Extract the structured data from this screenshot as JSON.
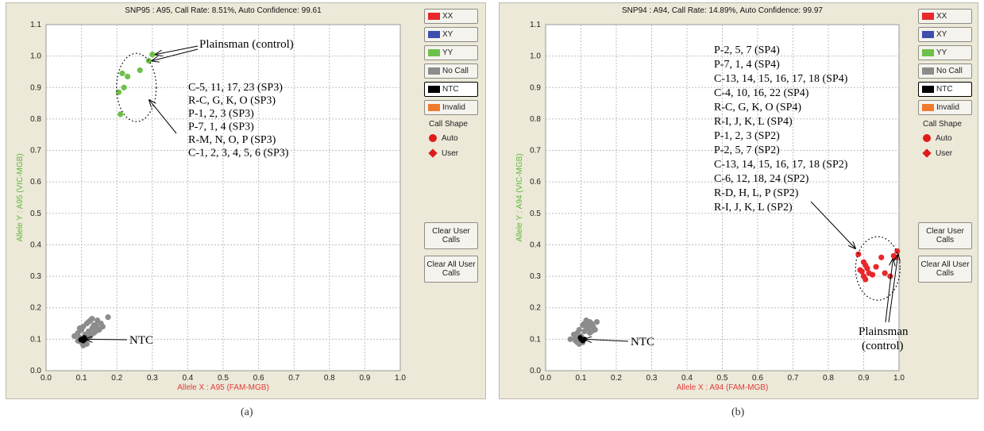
{
  "legend": {
    "items": [
      {
        "label": "XX",
        "color": "#e8282b"
      },
      {
        "label": "XY",
        "color": "#3c4fae"
      },
      {
        "label": "YY",
        "color": "#6dc14a"
      },
      {
        "label": "No Call",
        "color": "#8c8c8c"
      },
      {
        "label": "NTC",
        "color": "#000000"
      },
      {
        "label": "Invalid",
        "color": "#f07b2e"
      }
    ],
    "call_shape_label": "Call Shape",
    "auto_label": "Auto",
    "user_label": "User"
  },
  "buttons": {
    "clear_user": "Clear User Calls",
    "clear_all": "Clear All User Calls"
  },
  "chart_data": [
    {
      "type": "scatter",
      "caption": "(a)",
      "title": "SNP95 : A95, Call Rate: 8.51%, Auto Confidence: 99.61",
      "xlabel": "Allele X : A95 (FAM-MGB)",
      "ylabel": "Allele Y : A95 (VIC-MGB)",
      "xlim": [
        0,
        1.0
      ],
      "ylim": [
        0,
        1.1
      ],
      "ticks_x": [
        "0.0",
        "0.1",
        "0.2",
        "0.3",
        "0.4",
        "0.5",
        "0.6",
        "0.7",
        "0.8",
        "0.9",
        "1.0"
      ],
      "ticks_y": [
        "0.0",
        "0.1",
        "0.2",
        "0.3",
        "0.4",
        "0.5",
        "0.6",
        "0.7",
        "0.8",
        "0.9",
        "1.0",
        "1.1"
      ],
      "grid": true,
      "series": [
        {
          "call": "YY",
          "color": "#6dc14a",
          "points": [
            [
              0.3,
              1.005
            ],
            [
              0.29,
              0.985
            ],
            [
              0.265,
              0.955
            ],
            [
              0.23,
              0.935
            ],
            [
              0.215,
              0.945
            ],
            [
              0.22,
              0.9
            ],
            [
              0.205,
              0.885
            ],
            [
              0.21,
              0.815
            ]
          ]
        },
        {
          "call": "No Call",
          "color": "#8c8c8c",
          "points": [
            [
              0.08,
              0.11
            ],
            [
              0.09,
              0.12
            ],
            [
              0.095,
              0.105
            ],
            [
              0.1,
              0.13
            ],
            [
              0.105,
              0.14
            ],
            [
              0.11,
              0.115
            ],
            [
              0.115,
              0.15
            ],
            [
              0.12,
              0.125
            ],
            [
              0.125,
              0.16
            ],
            [
              0.13,
              0.135
            ],
            [
              0.135,
              0.12
            ],
            [
              0.14,
              0.145
            ],
            [
              0.145,
              0.16
            ],
            [
              0.15,
              0.13
            ],
            [
              0.155,
              0.15
            ],
            [
              0.1,
              0.09
            ],
            [
              0.11,
              0.1
            ],
            [
              0.12,
              0.155
            ],
            [
              0.13,
              0.165
            ],
            [
              0.14,
              0.125
            ],
            [
              0.16,
              0.14
            ],
            [
              0.175,
              0.17
            ],
            [
              0.095,
              0.135
            ],
            [
              0.105,
              0.08
            ],
            [
              0.115,
              0.085
            ],
            [
              0.12,
              0.105
            ],
            [
              0.135,
              0.145
            ],
            [
              0.125,
              0.11
            ],
            [
              0.09,
              0.095
            ],
            [
              0.145,
              0.135
            ]
          ]
        },
        {
          "call": "NTC",
          "color": "#000000",
          "points": [
            [
              0.1,
              0.1
            ],
            [
              0.105,
              0.095
            ],
            [
              0.11,
              0.1
            ],
            [
              0.108,
              0.105
            ],
            [
              0.098,
              0.098
            ]
          ]
        }
      ],
      "annotations": {
        "control": "Plainsman (control)",
        "ntc": "NTC",
        "lines": [
          "C-5, 11, 17, 23 (SP3)",
          "R-C, G, K, O (SP3)",
          "P-1, 2, 3 (SP3)",
          "P-7, 1, 4 (SP3)",
          "R-M, N, O, P (SP3)",
          "C-1, 2, 3, 4, 5, 6 (SP3)"
        ]
      }
    },
    {
      "type": "scatter",
      "caption": "(b)",
      "title": "SNP94 : A94, Call Rate: 14.89%, Auto Confidence: 99.97",
      "xlabel": "Allele X : A94 (FAM-MGB)",
      "ylabel": "Allele Y : A94 (VIC-MGB)",
      "xlim": [
        0,
        1.0
      ],
      "ylim": [
        0,
        1.1
      ],
      "ticks_x": [
        "0.0",
        "0.1",
        "0.2",
        "0.3",
        "0.4",
        "0.5",
        "0.6",
        "0.7",
        "0.8",
        "0.9",
        "1.0"
      ],
      "ticks_y": [
        "0.0",
        "0.1",
        "0.2",
        "0.3",
        "0.4",
        "0.5",
        "0.6",
        "0.7",
        "0.8",
        "0.9",
        "1.0",
        "1.1"
      ],
      "grid": true,
      "series": [
        {
          "call": "XX",
          "color": "#e8282b",
          "points": [
            [
              0.885,
              0.37
            ],
            [
              0.9,
              0.345
            ],
            [
              0.905,
              0.335
            ],
            [
              0.91,
              0.325
            ],
            [
              0.895,
              0.315
            ],
            [
              0.915,
              0.31
            ],
            [
              0.9,
              0.3
            ],
            [
              0.925,
              0.305
            ],
            [
              0.89,
              0.32
            ],
            [
              0.935,
              0.33
            ],
            [
              0.95,
              0.36
            ],
            [
              0.96,
              0.31
            ],
            [
              0.975,
              0.3
            ],
            [
              0.985,
              0.365
            ],
            [
              0.995,
              0.38
            ],
            [
              0.99,
              0.36
            ],
            [
              0.905,
              0.29
            ]
          ]
        },
        {
          "call": "No Call",
          "color": "#8c8c8c",
          "points": [
            [
              0.07,
              0.1
            ],
            [
              0.08,
              0.115
            ],
            [
              0.085,
              0.095
            ],
            [
              0.09,
              0.12
            ],
            [
              0.095,
              0.13
            ],
            [
              0.1,
              0.11
            ],
            [
              0.105,
              0.145
            ],
            [
              0.11,
              0.125
            ],
            [
              0.115,
              0.16
            ],
            [
              0.12,
              0.135
            ],
            [
              0.125,
              0.12
            ],
            [
              0.13,
              0.15
            ],
            [
              0.135,
              0.14
            ],
            [
              0.14,
              0.13
            ],
            [
              0.145,
              0.155
            ],
            [
              0.095,
              0.085
            ],
            [
              0.105,
              0.09
            ],
            [
              0.11,
              0.15
            ],
            [
              0.12,
              0.145
            ],
            [
              0.13,
              0.125
            ],
            [
              0.085,
              0.105
            ],
            [
              0.115,
              0.135
            ],
            [
              0.125,
              0.155
            ],
            [
              0.09,
              0.09
            ]
          ]
        },
        {
          "call": "NTC",
          "color": "#000000",
          "points": [
            [
              0.1,
              0.1
            ],
            [
              0.105,
              0.095
            ],
            [
              0.098,
              0.105
            ],
            [
              0.11,
              0.1
            ]
          ]
        }
      ],
      "annotations": {
        "control_line1": "Plainsman",
        "control_line2": "(control)",
        "ntc": "NTC",
        "lines": [
          "P-2, 5, 7 (SP4)",
          "P-7, 1, 4 (SP4)",
          "C-13, 14, 15, 16, 17, 18 (SP4)",
          "C-4, 10, 16, 22 (SP4)",
          "R-C, G, K, O (SP4)",
          "R-I, J, K, L (SP4)",
          "P-1, 2, 3 (SP2)",
          "P-2, 5, 7 (SP2)",
          "C-13, 14, 15, 16, 17, 18 (SP2)",
          "C-6, 12, 18, 24 (SP2)",
          "R-D, H, L, P (SP2)",
          "R-I, J, K, L (SP2)"
        ]
      }
    }
  ]
}
